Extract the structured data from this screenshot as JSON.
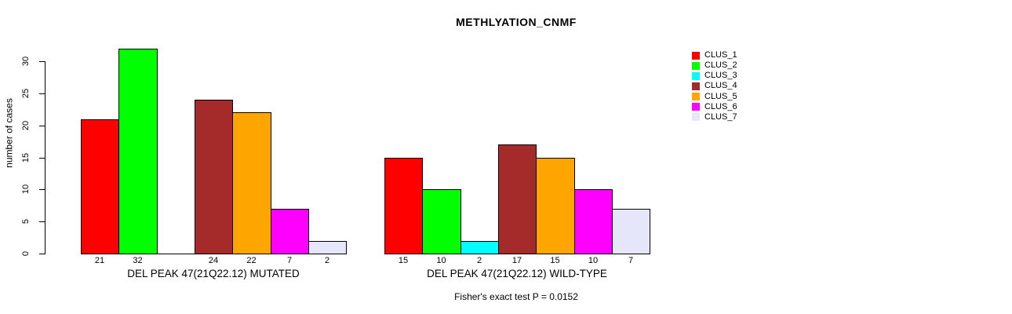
{
  "chart_data": {
    "type": "bar",
    "title": "METHLYATION_CNMF",
    "ylabel": "number of cases",
    "ylim": [
      0,
      30
    ],
    "yticks": [
      0,
      5,
      10,
      15,
      20,
      25,
      30
    ],
    "grid": false,
    "legend_position": "right",
    "bar_border_color": "#000000",
    "clusters": [
      {
        "name": "CLUS_1",
        "color": "#FF0000"
      },
      {
        "name": "CLUS_2",
        "color": "#00FF00"
      },
      {
        "name": "CLUS_3",
        "color": "#00FFFF"
      },
      {
        "name": "CLUS_4",
        "color": "#A52A2A"
      },
      {
        "name": "CLUS_5",
        "color": "#FFA500"
      },
      {
        "name": "CLUS_6",
        "color": "#FF00FF"
      },
      {
        "name": "CLUS_7",
        "color": "#E6E6FA"
      }
    ],
    "groups": [
      {
        "label": "DEL PEAK 47(21Q22.12) MUTATED",
        "values": [
          21,
          32,
          0,
          24,
          22,
          7,
          2
        ],
        "bar_labels": [
          "21",
          "32",
          "",
          "24",
          "22",
          "7",
          "2"
        ]
      },
      {
        "label": "DEL PEAK 47(21Q22.12) WILD-TYPE",
        "values": [
          15,
          10,
          2,
          17,
          15,
          10,
          7
        ],
        "bar_labels": [
          "15",
          "10",
          "2",
          "17",
          "15",
          "10",
          "7"
        ]
      }
    ],
    "footnote": "Fisher's exact test P = 0.0152"
  }
}
